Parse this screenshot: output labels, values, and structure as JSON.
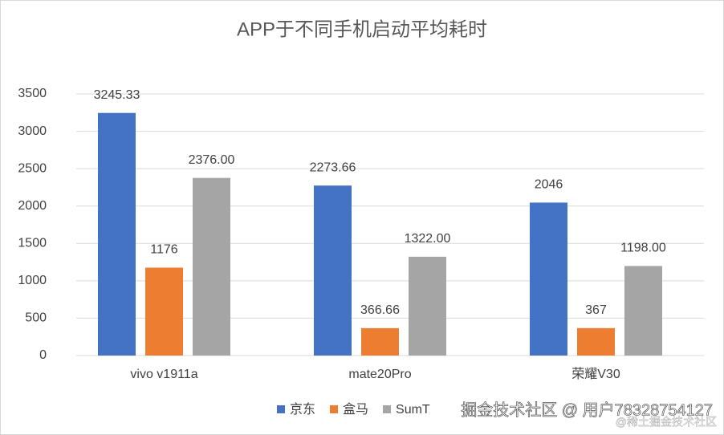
{
  "chart_data": {
    "type": "bar",
    "title": "APP于不同手机启动平均耗时",
    "categories": [
      "vivo v1911a",
      "mate20Pro",
      "荣耀V30"
    ],
    "series": [
      {
        "name": "京东",
        "color": "#4472c4",
        "values": [
          3245.33,
          2273.66,
          2046
        ]
      },
      {
        "name": "盒马",
        "color": "#ed7d31",
        "values": [
          1176,
          366.66,
          367
        ]
      },
      {
        "name": "SumT",
        "color": "#a5a5a5",
        "values": [
          2376,
          1322,
          1198
        ],
        "value_labels": [
          "2376.00",
          "1322.00",
          "1198.00"
        ]
      }
    ],
    "ylim": [
      0,
      3500
    ],
    "yticks": [
      0,
      500,
      1000,
      1500,
      2000,
      2500,
      3000,
      3500
    ],
    "grid": true,
    "legend": "bottom",
    "watermark": "掘金技术社区 @ 用户78328754127",
    "watermark2": "@稀土掘金技术社区"
  }
}
